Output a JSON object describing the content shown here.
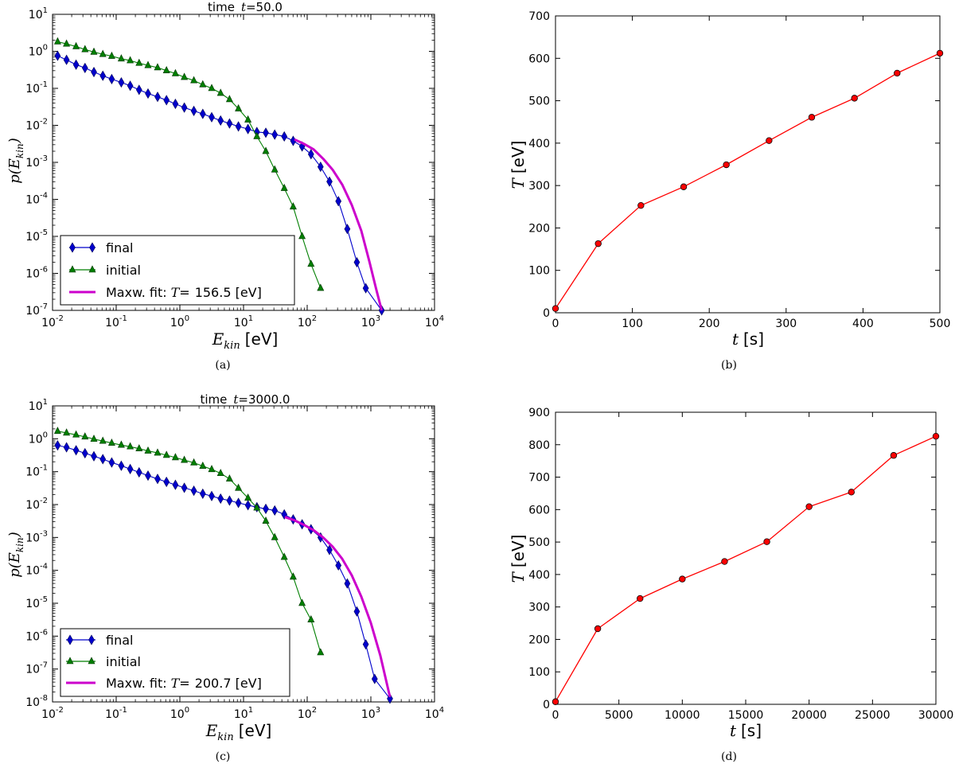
{
  "chart_data": [
    {
      "id": "a",
      "type": "line",
      "scale": "loglog",
      "title_prefix": "time",
      "title_var": "t",
      "title_value": "=50.0",
      "xlabel_var": "E",
      "xlabel_sub": "kin",
      "xlabel_unit": "[eV]",
      "ylabel_var": "p(E",
      "ylabel_sub": "kin",
      "ylabel_close": ")",
      "xlim_exp": [
        -2,
        4
      ],
      "ylim_exp": [
        -7,
        1
      ],
      "x_tick_labels": [
        "10-2",
        "10-1",
        "100",
        "101",
        "102",
        "103",
        "104"
      ],
      "y_tick_labels": [
        "10-7",
        "10-6",
        "10-5",
        "10-4",
        "10-3",
        "10-2",
        "10-1",
        "100",
        "101"
      ],
      "caption": "(a)",
      "legend_position": "lower-left",
      "legend": {
        "final": "final",
        "initial": "initial",
        "fit_prefix": "Maxw. fit:",
        "fit_var": "T",
        "fit_eq": "=",
        "fit_value": "156.5 [eV]"
      },
      "series": [
        {
          "name": "final",
          "color": "#0000cc",
          "marker": "diamond",
          "points": [
            [
              -1.92,
              -0.12
            ],
            [
              -1.78,
              -0.23
            ],
            [
              -1.63,
              -0.36
            ],
            [
              -1.49,
              -0.45
            ],
            [
              -1.35,
              -0.56
            ],
            [
              -1.21,
              -0.66
            ],
            [
              -1.07,
              -0.75
            ],
            [
              -0.92,
              -0.84
            ],
            [
              -0.78,
              -0.93
            ],
            [
              -0.64,
              -1.04
            ],
            [
              -0.5,
              -1.14
            ],
            [
              -0.35,
              -1.23
            ],
            [
              -0.21,
              -1.32
            ],
            [
              -0.07,
              -1.42
            ],
            [
              0.07,
              -1.52
            ],
            [
              0.22,
              -1.61
            ],
            [
              0.36,
              -1.69
            ],
            [
              0.5,
              -1.78
            ],
            [
              0.64,
              -1.87
            ],
            [
              0.78,
              -1.95
            ],
            [
              0.92,
              -2.03
            ],
            [
              1.07,
              -2.1
            ],
            [
              1.21,
              -2.18
            ],
            [
              1.35,
              -2.2
            ],
            [
              1.49,
              -2.25
            ],
            [
              1.64,
              -2.3
            ],
            [
              1.78,
              -2.42
            ],
            [
              1.92,
              -2.57
            ],
            [
              2.06,
              -2.78
            ],
            [
              2.21,
              -3.12
            ],
            [
              2.35,
              -3.52
            ],
            [
              2.49,
              -4.05
            ],
            [
              2.63,
              -4.8
            ],
            [
              2.78,
              -5.7
            ],
            [
              2.92,
              -6.4
            ],
            [
              3.17,
              -7.0
            ]
          ]
        },
        {
          "name": "initial",
          "color": "#007f00",
          "marker": "triangle",
          "points": [
            [
              -1.92,
              0.26
            ],
            [
              -1.78,
              0.2
            ],
            [
              -1.63,
              0.13
            ],
            [
              -1.49,
              0.05
            ],
            [
              -1.35,
              -0.02
            ],
            [
              -1.21,
              -0.08
            ],
            [
              -1.07,
              -0.13
            ],
            [
              -0.92,
              -0.2
            ],
            [
              -0.78,
              -0.25
            ],
            [
              -0.64,
              -0.32
            ],
            [
              -0.5,
              -0.38
            ],
            [
              -0.35,
              -0.44
            ],
            [
              -0.21,
              -0.52
            ],
            [
              -0.07,
              -0.6
            ],
            [
              0.07,
              -0.7
            ],
            [
              0.22,
              -0.79
            ],
            [
              0.36,
              -0.9
            ],
            [
              0.5,
              -1.0
            ],
            [
              0.64,
              -1.13
            ],
            [
              0.78,
              -1.3
            ],
            [
              0.92,
              -1.55
            ],
            [
              1.07,
              -1.85
            ],
            [
              1.21,
              -2.3
            ],
            [
              1.35,
              -2.7
            ],
            [
              1.49,
              -3.2
            ],
            [
              1.64,
              -3.7
            ],
            [
              1.78,
              -4.2
            ],
            [
              1.92,
              -5.0
            ],
            [
              2.06,
              -5.75
            ],
            [
              2.21,
              -6.4
            ]
          ]
        },
        {
          "name": "Maxw. fit",
          "color": "#cc00cc",
          "marker": "none",
          "points": [
            [
              1.8,
              -2.38
            ],
            [
              1.95,
              -2.5
            ],
            [
              2.1,
              -2.65
            ],
            [
              2.25,
              -2.9
            ],
            [
              2.4,
              -3.2
            ],
            [
              2.55,
              -3.6
            ],
            [
              2.7,
              -4.15
            ],
            [
              2.85,
              -4.85
            ],
            [
              2.98,
              -5.7
            ],
            [
              3.08,
              -6.4
            ],
            [
              3.17,
              -7.0
            ]
          ]
        }
      ]
    },
    {
      "id": "b",
      "type": "line",
      "scale": "linear",
      "xlabel_var": "t",
      "xlabel_unit": "[s]",
      "ylabel_var": "T",
      "ylabel_unit": "[eV]",
      "xlim": [
        0,
        500
      ],
      "ylim": [
        0,
        700
      ],
      "x_ticks": [
        0,
        100,
        200,
        300,
        400,
        500
      ],
      "y_ticks": [
        0,
        100,
        200,
        300,
        400,
        500,
        600,
        700
      ],
      "caption": "(b)",
      "series": [
        {
          "name": "T",
          "color": "#ff0000",
          "marker": "circle",
          "x": [
            0,
            55.6,
            111.1,
            166.7,
            222.2,
            277.8,
            333.3,
            388.9,
            444.4,
            500
          ],
          "y": [
            10,
            163,
            253,
            297,
            349,
            406,
            461,
            506,
            565,
            612
          ]
        }
      ]
    },
    {
      "id": "c",
      "type": "line",
      "scale": "loglog",
      "title_prefix": "time",
      "title_var": "t",
      "title_value": "=3000.0",
      "xlabel_var": "E",
      "xlabel_sub": "kin",
      "xlabel_unit": "[eV]",
      "ylabel_var": "p(E",
      "ylabel_sub": "kin",
      "ylabel_close": ")",
      "xlim_exp": [
        -2,
        4
      ],
      "ylim_exp": [
        -8,
        1
      ],
      "x_tick_labels": [
        "10-2",
        "10-1",
        "100",
        "101",
        "102",
        "103",
        "104"
      ],
      "y_tick_labels": [
        "10-8",
        "10-7",
        "10-6",
        "10-5",
        "10-4",
        "10-3",
        "10-2",
        "10-1",
        "100",
        "101"
      ],
      "caption": "(c)",
      "legend_position": "lower-left",
      "legend": {
        "final": "final",
        "initial": "initial",
        "fit_prefix": "Maxw. fit:",
        "fit_var": "T",
        "fit_eq": "=",
        "fit_value": "200.7 [eV]"
      },
      "series": [
        {
          "name": "final",
          "color": "#0000cc",
          "marker": "diamond",
          "points": [
            [
              -1.92,
              -0.2
            ],
            [
              -1.78,
              -0.26
            ],
            [
              -1.63,
              -0.35
            ],
            [
              -1.49,
              -0.44
            ],
            [
              -1.35,
              -0.53
            ],
            [
              -1.21,
              -0.62
            ],
            [
              -1.07,
              -0.72
            ],
            [
              -0.92,
              -0.82
            ],
            [
              -0.78,
              -0.92
            ],
            [
              -0.64,
              -1.02
            ],
            [
              -0.5,
              -1.12
            ],
            [
              -0.35,
              -1.22
            ],
            [
              -0.21,
              -1.31
            ],
            [
              -0.07,
              -1.4
            ],
            [
              0.07,
              -1.49
            ],
            [
              0.22,
              -1.58
            ],
            [
              0.36,
              -1.67
            ],
            [
              0.5,
              -1.74
            ],
            [
              0.64,
              -1.82
            ],
            [
              0.78,
              -1.88
            ],
            [
              0.92,
              -1.95
            ],
            [
              1.07,
              -2.02
            ],
            [
              1.21,
              -2.08
            ],
            [
              1.35,
              -2.13
            ],
            [
              1.49,
              -2.18
            ],
            [
              1.64,
              -2.3
            ],
            [
              1.78,
              -2.45
            ],
            [
              1.92,
              -2.6
            ],
            [
              2.06,
              -2.75
            ],
            [
              2.21,
              -3.0
            ],
            [
              2.35,
              -3.38
            ],
            [
              2.49,
              -3.85
            ],
            [
              2.63,
              -4.4
            ],
            [
              2.78,
              -5.25
            ],
            [
              2.92,
              -6.25
            ],
            [
              3.06,
              -7.3
            ],
            [
              3.3,
              -7.9
            ]
          ]
        },
        {
          "name": "initial",
          "color": "#007f00",
          "marker": "triangle",
          "points": [
            [
              -1.92,
              0.23
            ],
            [
              -1.78,
              0.18
            ],
            [
              -1.63,
              0.12
            ],
            [
              -1.49,
              0.06
            ],
            [
              -1.35,
              -0.01
            ],
            [
              -1.21,
              -0.07
            ],
            [
              -1.07,
              -0.13
            ],
            [
              -0.92,
              -0.19
            ],
            [
              -0.78,
              -0.24
            ],
            [
              -0.64,
              -0.3
            ],
            [
              -0.5,
              -0.37
            ],
            [
              -0.35,
              -0.43
            ],
            [
              -0.21,
              -0.5
            ],
            [
              -0.07,
              -0.57
            ],
            [
              0.07,
              -0.65
            ],
            [
              0.22,
              -0.73
            ],
            [
              0.36,
              -0.83
            ],
            [
              0.5,
              -0.93
            ],
            [
              0.64,
              -1.05
            ],
            [
              0.78,
              -1.22
            ],
            [
              0.92,
              -1.5
            ],
            [
              1.07,
              -1.8
            ],
            [
              1.21,
              -2.1
            ],
            [
              1.35,
              -2.5
            ],
            [
              1.49,
              -3.0
            ],
            [
              1.64,
              -3.6
            ],
            [
              1.78,
              -4.2
            ],
            [
              1.92,
              -5.0
            ],
            [
              2.06,
              -5.5
            ],
            [
              2.21,
              -6.5
            ]
          ]
        },
        {
          "name": "Maxw. fit",
          "color": "#cc00cc",
          "marker": "none",
          "points": [
            [
              1.65,
              -2.38
            ],
            [
              1.8,
              -2.48
            ],
            [
              1.95,
              -2.62
            ],
            [
              2.1,
              -2.78
            ],
            [
              2.25,
              -3.0
            ],
            [
              2.4,
              -3.28
            ],
            [
              2.55,
              -3.65
            ],
            [
              2.7,
              -4.15
            ],
            [
              2.85,
              -4.8
            ],
            [
              3.0,
              -5.6
            ],
            [
              3.15,
              -6.6
            ],
            [
              3.3,
              -7.85
            ]
          ]
        }
      ]
    },
    {
      "id": "d",
      "type": "line",
      "scale": "linear",
      "xlabel_var": "t",
      "xlabel_unit": "[s]",
      "ylabel_var": "T",
      "ylabel_unit": "[eV]",
      "xlim": [
        0,
        30000
      ],
      "ylim": [
        0,
        900
      ],
      "x_ticks": [
        0,
        5000,
        10000,
        15000,
        20000,
        25000,
        30000
      ],
      "y_ticks": [
        0,
        100,
        200,
        300,
        400,
        500,
        600,
        700,
        800,
        900
      ],
      "caption": "(d)",
      "series": [
        {
          "name": "T",
          "color": "#ff0000",
          "marker": "circle",
          "x": [
            0,
            3333,
            6667,
            10000,
            13333,
            16667,
            20000,
            23333,
            26667,
            30000
          ],
          "y": [
            8,
            233,
            326,
            386,
            440,
            501,
            609,
            654,
            767,
            826
          ]
        }
      ]
    }
  ]
}
